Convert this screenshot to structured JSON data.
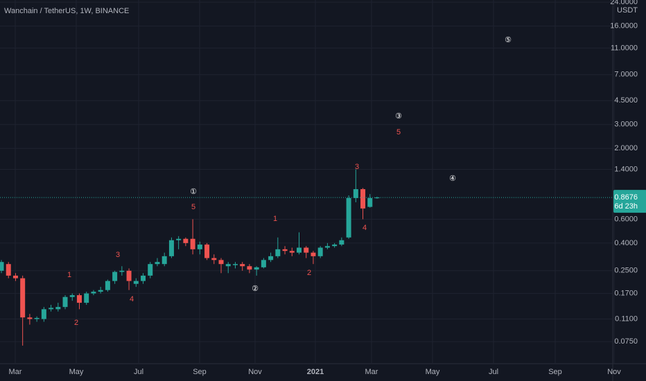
{
  "chart_data": {
    "type": "candlestick",
    "title": "Wanchain / TetherUS, 1W, BINANCE",
    "y_unit": "USDT",
    "log_scale": true,
    "grid": true,
    "up_color": "#26a69a",
    "down_color": "#ef5350",
    "ylim": [
      0.0515,
      24.9
    ],
    "yticks": [
      {
        "value": 0.075,
        "label": "0.0750"
      },
      {
        "value": 0.11,
        "label": "0.1100"
      },
      {
        "value": 0.17,
        "label": "0.1700"
      },
      {
        "value": 0.25,
        "label": "0.2500"
      },
      {
        "value": 0.4,
        "label": "0.4000"
      },
      {
        "value": 0.6,
        "label": "0.6000"
      },
      {
        "value": 1.4,
        "label": "1.4000"
      },
      {
        "value": 2,
        "label": "2.0000"
      },
      {
        "value": 3,
        "label": "3.0000"
      },
      {
        "value": 4.5,
        "label": "4.5000"
      },
      {
        "value": 7,
        "label": "7.0000"
      },
      {
        "value": 11,
        "label": "11.0000"
      },
      {
        "value": 16,
        "label": "16.0000"
      },
      {
        "value": 24,
        "label": "24.0000"
      }
    ],
    "x_labels": [
      "Mar",
      "May",
      "Jul",
      "Sep",
      "Nov",
      "2021",
      "Mar",
      "May",
      "Jul",
      "Sep",
      "Nov"
    ],
    "open": [
      0.25,
      0.28,
      0.23,
      0.22,
      0.113,
      0.11,
      0.11,
      0.13,
      0.13,
      0.135,
      0.16,
      0.165,
      0.145,
      0.17,
      0.175,
      0.18,
      0.21,
      0.245,
      0.25,
      0.2,
      0.21,
      0.23,
      0.28,
      0.28,
      0.32,
      0.42,
      0.43,
      0.43,
      0.36,
      0.39,
      0.31,
      0.3,
      0.27,
      0.275,
      0.28,
      0.27,
      0.255,
      0.265,
      0.3,
      0.32,
      0.36,
      0.35,
      0.34,
      0.37,
      0.34,
      0.32,
      0.37,
      0.38,
      0.39,
      0.44,
      0.86,
      1.0,
      0.74,
      0.86
    ],
    "high": [
      0.3,
      0.29,
      0.24,
      0.23,
      0.12,
      0.115,
      0.135,
      0.14,
      0.145,
      0.165,
      0.17,
      0.17,
      0.175,
      0.18,
      0.19,
      0.215,
      0.25,
      0.27,
      0.26,
      0.22,
      0.24,
      0.29,
      0.31,
      0.34,
      0.44,
      0.45,
      0.44,
      0.6,
      0.41,
      0.4,
      0.33,
      0.31,
      0.29,
      0.29,
      0.29,
      0.28,
      0.27,
      0.31,
      0.34,
      0.44,
      0.38,
      0.37,
      0.48,
      0.38,
      0.35,
      0.38,
      0.4,
      0.4,
      0.44,
      0.9,
      1.4,
      1.02,
      0.92,
      0.88
    ],
    "low": [
      0.24,
      0.22,
      0.21,
      0.07,
      0.1,
      0.105,
      0.105,
      0.125,
      0.125,
      0.13,
      0.15,
      0.13,
      0.14,
      0.165,
      0.17,
      0.175,
      0.2,
      0.23,
      0.18,
      0.19,
      0.2,
      0.22,
      0.27,
      0.27,
      0.31,
      0.36,
      0.38,
      0.33,
      0.33,
      0.3,
      0.28,
      0.24,
      0.24,
      0.26,
      0.25,
      0.24,
      0.23,
      0.26,
      0.29,
      0.31,
      0.33,
      0.32,
      0.33,
      0.31,
      0.28,
      0.31,
      0.36,
      0.37,
      0.38,
      0.43,
      0.8,
      0.6,
      0.73,
      0.85
    ],
    "close": [
      0.29,
      0.23,
      0.22,
      0.113,
      0.11,
      0.112,
      0.13,
      0.133,
      0.135,
      0.16,
      0.165,
      0.145,
      0.17,
      0.175,
      0.18,
      0.21,
      0.245,
      0.25,
      0.21,
      0.21,
      0.23,
      0.28,
      0.29,
      0.32,
      0.42,
      0.43,
      0.4,
      0.36,
      0.39,
      0.31,
      0.3,
      0.28,
      0.28,
      0.28,
      0.27,
      0.255,
      0.265,
      0.3,
      0.32,
      0.36,
      0.35,
      0.34,
      0.37,
      0.34,
      0.32,
      0.37,
      0.38,
      0.39,
      0.42,
      0.86,
      1.0,
      0.72,
      0.86,
      0.8676
    ],
    "current_price": {
      "value": 0.8676,
      "label": "0.8676"
    },
    "countdown": "6d 23h",
    "wave_labels": [
      "1",
      "2",
      "3",
      "4",
      "5",
      "1",
      "2",
      "3",
      "4",
      "5"
    ],
    "wave_circles": [
      "①",
      "②",
      "③",
      "④",
      "⑤"
    ]
  }
}
